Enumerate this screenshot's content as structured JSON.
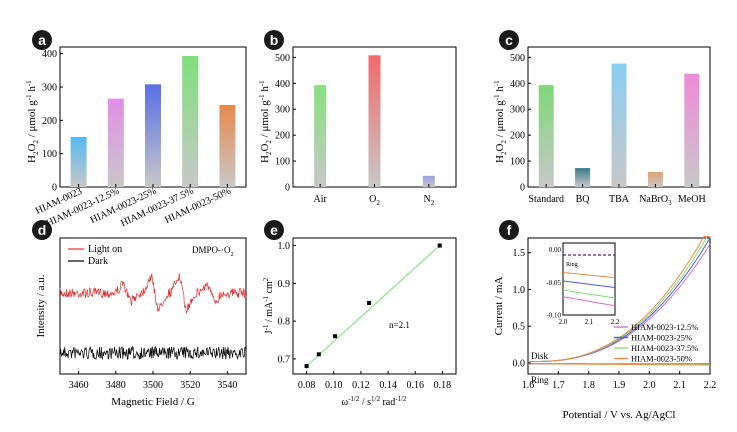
{
  "chart_data": [
    {
      "panel": "a",
      "type": "bar",
      "ylabel_main": "H",
      "ylabel_sub1": "2",
      "ylabel_mid": "O",
      "ylabel_sub2": "2",
      "ylabel_unit": " / μmol g",
      "ylabel_sup1": "-1",
      "ylabel_h": " h",
      "ylabel_sup2": "-1",
      "ylim": [
        0,
        400
      ],
      "yticks": [
        "0",
        "100",
        "200",
        "300",
        "400"
      ],
      "categories": [
        "HIAM-0023",
        "HIAM-0023-12.5%",
        "HIAM-0023-25%",
        "HIAM-0023-37.5%",
        "HIAM-0023-50%"
      ],
      "values": [
        150,
        265,
        308,
        393,
        246
      ],
      "colors": [
        "#56b8f0",
        "#e38ee8",
        "#5a6fe8",
        "#7ee07a",
        "#e88a4e"
      ]
    },
    {
      "panel": "b",
      "type": "bar",
      "ylim": [
        0,
        500
      ],
      "yticks": [
        "0",
        "100",
        "200",
        "300",
        "400",
        "500"
      ],
      "categories": [
        "Air",
        "O",
        "N"
      ],
      "category_subs": [
        "",
        "2",
        "2"
      ],
      "values": [
        393,
        508,
        43
      ],
      "colors": [
        "#86e07e",
        "#f06a6a",
        "#9aa0e8"
      ]
    },
    {
      "panel": "c",
      "type": "bar",
      "ylim": [
        0,
        500
      ],
      "yticks": [
        "0",
        "100",
        "200",
        "300",
        "400",
        "500"
      ],
      "categories": [
        "Standard",
        "BQ",
        "TBA",
        "NaBrO",
        "MeOH"
      ],
      "category_subs": [
        "",
        "",
        "",
        "3",
        ""
      ],
      "values": [
        393,
        73,
        476,
        58,
        437
      ],
      "colors": [
        "#7ed878",
        "#3a7a8a",
        "#8acdf4",
        "#e0a070",
        "#f08ad8"
      ]
    },
    {
      "panel": "d",
      "type": "line",
      "xlabel": "Magnetic Field / G",
      "ylabel": "Intensity / a.u.",
      "xlim": [
        3450,
        3550
      ],
      "xticks": [
        "3460",
        "3480",
        "3500",
        "3520",
        "3540"
      ],
      "annotation": "DMPO-·O",
      "annotation_sub": "2",
      "series": [
        {
          "name": "Light on",
          "color": "#e03030"
        },
        {
          "name": "Dark",
          "color": "#000000"
        }
      ]
    },
    {
      "panel": "e",
      "type": "scatter",
      "xlabel_main": "ω",
      "xlabel_sup": "-1/2",
      "xlabel_mid": " / s",
      "xlabel_sup2": "1/2",
      "xlabel_end": " rad",
      "xlabel_sup3": "-1/2",
      "ylabel_main": "J",
      "ylabel_sup": "-1",
      "ylabel_unit": " / mA",
      "ylabel_sup2": "-1",
      "ylabel_end": " cm",
      "ylabel_sup3": "2",
      "xlim": [
        0.07,
        0.19
      ],
      "ylim": [
        0.66,
        1.02
      ],
      "xticks": [
        "0.08",
        "0.10",
        "0.12",
        "0.14",
        "0.16",
        "0.18"
      ],
      "yticks": [
        "0.7",
        "0.8",
        "0.9",
        "1.0"
      ],
      "x": [
        0.08,
        0.089,
        0.101,
        0.126,
        0.178
      ],
      "y": [
        0.681,
        0.712,
        0.76,
        0.848,
        1.0
      ],
      "fit_color": "#8ee08a",
      "annotation": "n=2.1"
    },
    {
      "panel": "f",
      "type": "line",
      "xlabel": "Potential / V vs. Ag/AgCl",
      "ylabel": "Current / mA",
      "xlim": [
        1.6,
        2.2
      ],
      "ylim": [
        -0.15,
        1.7
      ],
      "xticks": [
        "1.6",
        "1.7",
        "1.8",
        "1.9",
        "2.0",
        "2.1",
        "2.2"
      ],
      "yticks": [
        "0.0",
        "0.5",
        "1.0",
        "1.5"
      ],
      "disk_label": "Disk",
      "ring_label": "Ring",
      "series": [
        {
          "name": "HIAM-0023-12.5%",
          "color": "#d070d8"
        },
        {
          "name": "HIAM-0023-25%",
          "color": "#4a5ee0"
        },
        {
          "name": "HIAM-0023-37.5%",
          "color": "#7ee07a"
        },
        {
          "name": "HIAM-0023-50%",
          "color": "#f08a40"
        }
      ],
      "inset": {
        "label": "Ring",
        "xlim": [
          2.0,
          2.2
        ],
        "ylim": [
          -0.1,
          0.01
        ],
        "xticks": [
          "2.0",
          "2.1",
          "2.2"
        ],
        "yticks": [
          "0.00",
          "-0.05",
          "-0.10"
        ]
      }
    }
  ],
  "panel_labels": [
    "a",
    "b",
    "c",
    "d",
    "e",
    "f"
  ],
  "badge_color": "#1a1a1a"
}
